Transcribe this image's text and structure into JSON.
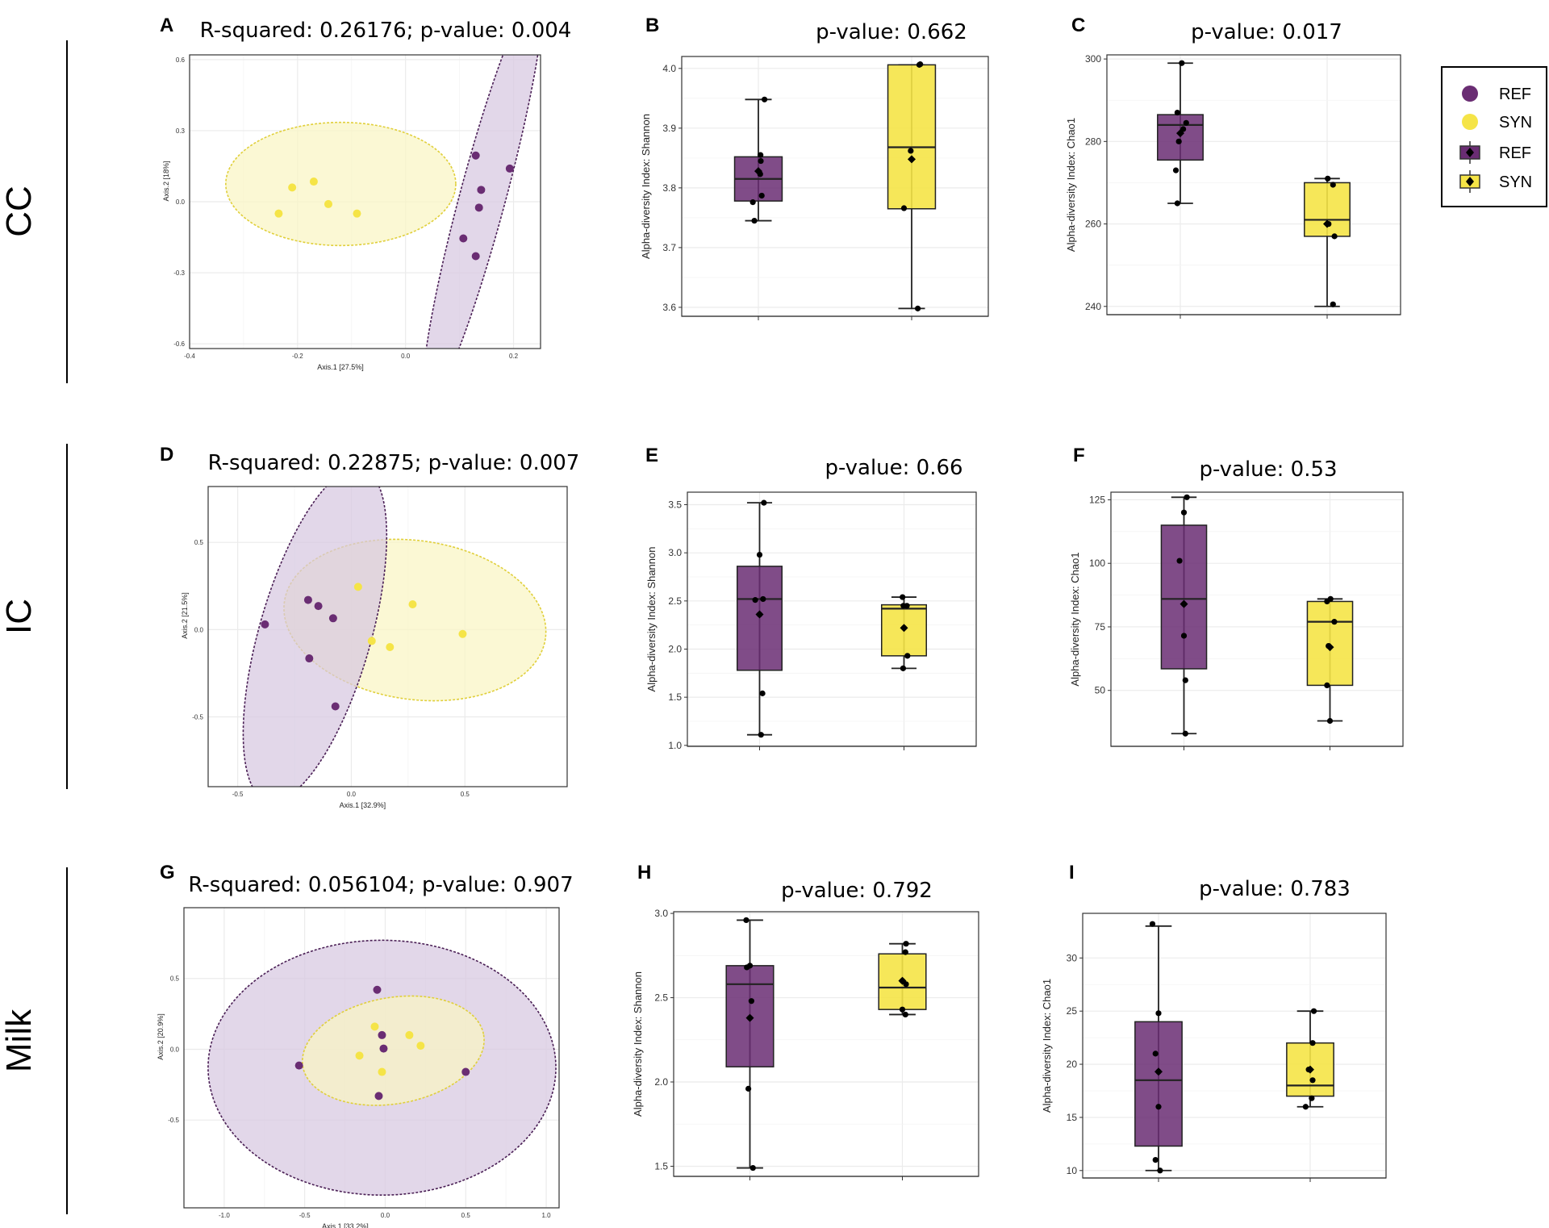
{
  "colors": {
    "REF": "#6a2d73",
    "SYN": "#f5e447",
    "REF_ellipse_fill": "#d7c7e0",
    "SYN_ellipse_fill": "#faf5c4",
    "overlap_fill": "#ddcba8",
    "grid": "#ebebeb",
    "border": "#333333"
  },
  "row_labels": [
    "CC",
    "IC",
    "Milk"
  ],
  "legend": {
    "entries": [
      {
        "label": "REF",
        "group": "REF",
        "shape": "circle"
      },
      {
        "label": "SYN",
        "group": "SYN",
        "shape": "circle"
      },
      {
        "label": "REF",
        "group": "REF",
        "shape": "boxplot"
      },
      {
        "label": "SYN",
        "group": "SYN",
        "shape": "boxplot"
      }
    ]
  },
  "chart_data": [
    {
      "panel": "A",
      "type": "scatter",
      "row": "CC",
      "title": "R-squared: 0.26176; p-value: 0.004",
      "xlabel": "Axis.1   [27.5%]",
      "ylabel": "Axis.2   [18%]",
      "xlim": [
        -0.4,
        0.25
      ],
      "ylim": [
        -0.62,
        0.62
      ],
      "xticks": [
        -0.4,
        -0.2,
        0.0,
        0.2
      ],
      "xticklabels": [
        "-0.4",
        "-0.2",
        "0.0",
        "0.2"
      ],
      "yticks": [
        -0.6,
        -0.3,
        0.0,
        0.3,
        0.6
      ],
      "yticklabels": [
        "-0.6",
        "-0.3",
        "0.0",
        "0.3",
        "0.6"
      ],
      "ellipses": [
        {
          "group": "SYN",
          "cx": -0.12,
          "cy": 0.075,
          "rx": 0.213,
          "ry": 0.26,
          "angle": 0
        },
        {
          "group": "REF",
          "cx": 0.143,
          "cy": 0.02,
          "rx": 0.4,
          "ry": 0.097,
          "angle": -75
        }
      ],
      "series": [
        {
          "name": "SYN",
          "points": [
            [
              -0.235,
              -0.05
            ],
            [
              -0.21,
              0.06
            ],
            [
              -0.17,
              0.085
            ],
            [
              -0.143,
              -0.01
            ],
            [
              -0.09,
              -0.05
            ]
          ]
        },
        {
          "name": "REF",
          "points": [
            [
              0.13,
              0.195
            ],
            [
              0.193,
              0.14
            ],
            [
              0.14,
              0.05
            ],
            [
              0.136,
              -0.025
            ],
            [
              0.107,
              -0.155
            ],
            [
              0.13,
              -0.23
            ]
          ]
        }
      ]
    },
    {
      "panel": "B",
      "type": "boxplot",
      "row": "CC",
      "title": "p-value: 0.662",
      "ylabel": "Alpha-diversity Index: Shannon",
      "ylim": [
        3.585,
        4.02
      ],
      "yticks": [
        3.6,
        3.7,
        3.8,
        3.9,
        4.0
      ],
      "yticklabels": [
        "3.6",
        "3.7",
        "3.8",
        "3.9",
        "4.0"
      ],
      "groups": [
        {
          "name": "REF",
          "whisker_low": 3.745,
          "q1": 3.778,
          "median": 3.815,
          "q3": 3.852,
          "whisker_high": 3.948,
          "mean": 3.828,
          "points": [
            [
              -0.13,
              3.745
            ],
            [
              -0.18,
              3.776
            ],
            [
              0.11,
              3.787
            ],
            [
              0.06,
              3.823
            ],
            [
              0.08,
              3.845
            ],
            [
              0.07,
              3.855
            ],
            [
              0.2,
              3.948
            ]
          ]
        },
        {
          "name": "SYN",
          "whisker_low": 3.598,
          "q1": 3.765,
          "median": 3.868,
          "q3": 4.006,
          "whisker_high": 4.006,
          "mean": 3.848,
          "points": [
            [
              -0.25,
              3.766
            ],
            [
              -0.03,
              3.862
            ],
            [
              0.25,
              4.006
            ],
            [
              0.28,
              4.007
            ],
            [
              0.2,
              3.598
            ]
          ]
        }
      ]
    },
    {
      "panel": "C",
      "type": "boxplot",
      "row": "CC",
      "title": "p-value: 0.017",
      "ylabel": "Alpha-diversity Index: Chao1",
      "ylim": [
        238,
        301
      ],
      "yticks": [
        240,
        260,
        280,
        300
      ],
      "yticklabels": [
        "240",
        "260",
        "280",
        "300"
      ],
      "groups": [
        {
          "name": "REF",
          "whisker_low": 265,
          "q1": 275.5,
          "median": 284,
          "q3": 286.5,
          "whisker_high": 299,
          "mean": 282,
          "points": [
            [
              -0.1,
              265
            ],
            [
              -0.15,
              273
            ],
            [
              -0.05,
              280
            ],
            [
              0.1,
              283
            ],
            [
              0.2,
              284.5
            ],
            [
              -0.1,
              287
            ],
            [
              0.05,
              299
            ]
          ]
        },
        {
          "name": "SYN",
          "whisker_low": 240,
          "q1": 257,
          "median": 261,
          "q3": 270,
          "whisker_high": 271,
          "mean": 260,
          "points": [
            [
              0.2,
              240.5
            ],
            [
              0.25,
              257
            ],
            [
              0.05,
              260
            ],
            [
              0.2,
              269.5
            ],
            [
              0.02,
              271
            ]
          ]
        }
      ]
    },
    {
      "panel": "D",
      "type": "scatter",
      "row": "IC",
      "title": "R-squared: 0.22875; p-value: 0.007",
      "xlabel": "Axis.1   [32.9%]",
      "ylabel": "Axis.2   [21.5%]",
      "xlim": [
        -0.63,
        0.95
      ],
      "ylim": [
        -0.9,
        0.82
      ],
      "xticks": [
        -0.5,
        0.0,
        0.5
      ],
      "xticklabels": [
        "-0.5",
        "0.0",
        "0.5"
      ],
      "yticks": [
        -0.5,
        0.0,
        0.5
      ],
      "yticklabels": [
        "-0.5",
        "0.0",
        "0.5"
      ],
      "ellipses": [
        {
          "group": "SYN",
          "cx": 0.28,
          "cy": 0.055,
          "rx": 0.58,
          "ry": 0.455,
          "angle": 8
        },
        {
          "group": "REF",
          "cx": -0.16,
          "cy": -0.03,
          "rx": 0.76,
          "ry": 0.32,
          "angle": -74
        }
      ],
      "series": [
        {
          "name": "REF",
          "points": [
            [
              -0.38,
              0.03
            ],
            [
              -0.19,
              0.17
            ],
            [
              -0.145,
              0.135
            ],
            [
              -0.08,
              0.065
            ],
            [
              -0.185,
              -0.165
            ],
            [
              -0.07,
              -0.44
            ]
          ]
        },
        {
          "name": "SYN",
          "points": [
            [
              0.03,
              0.245
            ],
            [
              0.27,
              0.145
            ],
            [
              0.49,
              -0.025
            ],
            [
              0.09,
              -0.065
            ],
            [
              0.17,
              -0.1
            ]
          ]
        }
      ]
    },
    {
      "panel": "E",
      "type": "boxplot",
      "row": "IC",
      "title": "p-value: 0.66",
      "ylabel": "Alpha-diversity Index: Shannon",
      "ylim": [
        0.99,
        3.63
      ],
      "yticks": [
        1.0,
        1.5,
        2.0,
        2.5,
        3.0,
        3.5
      ],
      "yticklabels": [
        "1.0",
        "1.5",
        "2.0",
        "2.5",
        "3.0",
        "3.5"
      ],
      "groups": [
        {
          "name": "REF",
          "whisker_low": 1.11,
          "q1": 1.78,
          "median": 2.52,
          "q3": 2.86,
          "whisker_high": 3.52,
          "mean": 2.36,
          "points": [
            [
              0.05,
              1.11
            ],
            [
              0.1,
              1.54
            ],
            [
              0.0,
              2.36
            ],
            [
              -0.15,
              2.51
            ],
            [
              0.12,
              2.52
            ],
            [
              0.0,
              2.98
            ],
            [
              0.15,
              3.52
            ]
          ]
        },
        {
          "name": "SYN",
          "whisker_low": 1.8,
          "q1": 1.93,
          "median": 2.42,
          "q3": 2.46,
          "whisker_high": 2.54,
          "mean": 2.22,
          "points": [
            [
              -0.03,
              1.8
            ],
            [
              0.12,
              1.93
            ],
            [
              0.0,
              2.22
            ],
            [
              -0.02,
              2.45
            ],
            [
              0.1,
              2.45
            ],
            [
              -0.05,
              2.54
            ]
          ]
        }
      ]
    },
    {
      "panel": "F",
      "type": "boxplot",
      "row": "IC",
      "title": "p-value: 0.53",
      "ylabel": "Alpha-diversity Index: Chao1",
      "ylim": [
        28,
        128
      ],
      "yticks": [
        50,
        75,
        100,
        125
      ],
      "yticklabels": [
        "50",
        "75",
        "100",
        "125"
      ],
      "groups": [
        {
          "name": "REF",
          "whisker_low": 33,
          "q1": 58.5,
          "median": 86,
          "q3": 115,
          "whisker_high": 126,
          "mean": 84,
          "points": [
            [
              0.05,
              33
            ],
            [
              0.05,
              54
            ],
            [
              0.0,
              71.5
            ],
            [
              0.0,
              84
            ],
            [
              -0.15,
              101
            ],
            [
              0.0,
              120
            ],
            [
              0.1,
              126
            ]
          ]
        },
        {
          "name": "SYN",
          "whisker_low": 38,
          "q1": 52,
          "median": 77,
          "q3": 85,
          "whisker_high": 86,
          "mean": 67,
          "points": [
            [
              0.0,
              38
            ],
            [
              -0.1,
              52
            ],
            [
              -0.05,
              67.5
            ],
            [
              0.15,
              77
            ],
            [
              -0.1,
              85
            ],
            [
              0.02,
              86
            ]
          ]
        }
      ]
    },
    {
      "panel": "G",
      "type": "scatter",
      "row": "Milk",
      "title": "R-squared: 0.056104; p-value: 0.907",
      "xlabel": "Axis.1   [33.2%]",
      "ylabel": "Axis.2   [20.9%]",
      "xlim": [
        -1.25,
        1.08
      ],
      "ylim": [
        -1.12,
        1.0
      ],
      "xticks": [
        -1.0,
        -0.5,
        0.0,
        0.5,
        1.0
      ],
      "xticklabels": [
        "-1.0",
        "-0.5",
        "0.0",
        "0.5",
        "1.0"
      ],
      "yticks": [
        -0.5,
        0.0,
        0.5
      ],
      "yticklabels": [
        "-0.5",
        "0.0",
        "0.5"
      ],
      "ellipses": [
        {
          "group": "REF",
          "cx": -0.02,
          "cy": -0.13,
          "rx": 1.08,
          "ry": 0.9,
          "angle": 0
        },
        {
          "group": "SYN",
          "cx": 0.05,
          "cy": -0.01,
          "rx": 0.57,
          "ry": 0.375,
          "angle": -10
        }
      ],
      "series": [
        {
          "name": "REF",
          "points": [
            [
              -0.05,
              0.42
            ],
            [
              -0.02,
              0.1
            ],
            [
              -0.01,
              0.005
            ],
            [
              -0.535,
              -0.115
            ],
            [
              0.5,
              -0.16
            ],
            [
              -0.04,
              -0.33
            ]
          ]
        },
        {
          "name": "SYN",
          "points": [
            [
              -0.065,
              0.16
            ],
            [
              0.15,
              0.1
            ],
            [
              0.22,
              0.025
            ],
            [
              -0.16,
              -0.045
            ],
            [
              -0.02,
              -0.16
            ]
          ]
        }
      ]
    },
    {
      "panel": "H",
      "type": "boxplot",
      "row": "Milk",
      "title": "p-value: 0.792",
      "ylabel": "Alpha-diversity Index: Shannon",
      "ylim": [
        1.44,
        3.01
      ],
      "yticks": [
        1.5,
        2.0,
        2.5,
        3.0
      ],
      "yticklabels": [
        "1.5",
        "2.0",
        "2.5",
        "3.0"
      ],
      "groups": [
        {
          "name": "REF",
          "whisker_low": 1.49,
          "q1": 2.09,
          "median": 2.58,
          "q3": 2.69,
          "whisker_high": 2.96,
          "mean": 2.38,
          "points": [
            [
              0.1,
              1.49
            ],
            [
              -0.05,
              1.96
            ],
            [
              0.0,
              2.38
            ],
            [
              0.05,
              2.48
            ],
            [
              0.0,
              2.69
            ],
            [
              -0.1,
              2.68
            ],
            [
              -0.12,
              2.96
            ]
          ]
        },
        {
          "name": "SYN",
          "whisker_low": 2.4,
          "q1": 2.43,
          "median": 2.56,
          "q3": 2.76,
          "whisker_high": 2.82,
          "mean": 2.6,
          "points": [
            [
              0.1,
              2.4
            ],
            [
              0.0,
              2.43
            ],
            [
              0.0,
              2.6
            ],
            [
              0.12,
              2.58
            ],
            [
              0.1,
              2.77
            ],
            [
              0.12,
              2.82
            ]
          ]
        }
      ]
    },
    {
      "panel": "I",
      "type": "boxplot",
      "row": "Milk",
      "title": "p-value: 0.783",
      "ylabel": "Alpha-diversity Index: Chao1",
      "ylim": [
        9.3,
        34.2
      ],
      "yticks": [
        10,
        15,
        20,
        25,
        30
      ],
      "yticklabels": [
        "10",
        "15",
        "20",
        "25",
        "30"
      ],
      "groups": [
        {
          "name": "REF",
          "whisker_low": 10,
          "q1": 12.3,
          "median": 18.5,
          "q3": 24,
          "whisker_high": 33,
          "mean": 19.3,
          "points": [
            [
              0.05,
              10
            ],
            [
              -0.1,
              11
            ],
            [
              0.0,
              16
            ],
            [
              0.0,
              19.3
            ],
            [
              -0.1,
              21
            ],
            [
              0.0,
              24.8
            ],
            [
              -0.2,
              33.2
            ]
          ]
        },
        {
          "name": "SYN",
          "whisker_low": 16,
          "q1": 17,
          "median": 18,
          "q3": 22,
          "whisker_high": 25,
          "mean": 19.5,
          "points": [
            [
              -0.15,
              16
            ],
            [
              0.05,
              16.8
            ],
            [
              0.08,
              18.5
            ],
            [
              -0.05,
              19.5
            ],
            [
              0.08,
              22
            ],
            [
              0.12,
              25
            ]
          ]
        }
      ]
    }
  ]
}
